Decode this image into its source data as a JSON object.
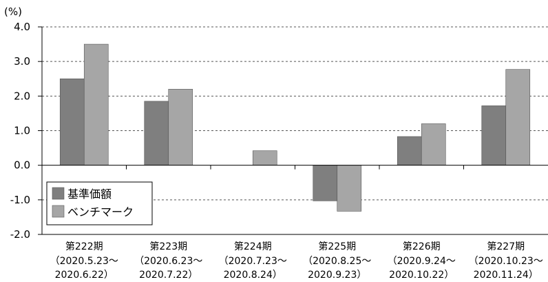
{
  "chart_data": {
    "type": "bar",
    "unit_label": "(%)",
    "ylim": [
      -2.0,
      4.0
    ],
    "yticks": [
      "4.0",
      "3.0",
      "2.0",
      "1.0",
      "0.0",
      "-1.0",
      "-2.0"
    ],
    "ytick_values": [
      4.0,
      3.0,
      2.0,
      1.0,
      0.0,
      -1.0,
      -2.0
    ],
    "grid": "dashed horizontal",
    "legend_position": "bottom-left",
    "categories": [
      {
        "line1": "第222期",
        "line2": "（2020.5.23〜",
        "line3": "2020.6.22）"
      },
      {
        "line1": "第223期",
        "line2": "（2020.6.23〜",
        "line3": "2020.7.22）"
      },
      {
        "line1": "第224期",
        "line2": "（2020.7.23〜",
        "line3": "2020.8.24）"
      },
      {
        "line1": "第225期",
        "line2": "（2020.8.25〜",
        "line3": "2020.9.23）"
      },
      {
        "line1": "第226期",
        "line2": "（2020.9.24〜",
        "line3": "2020.10.22）"
      },
      {
        "line1": "第227期",
        "line2": "（2020.10.23〜",
        "line3": "2020.11.24）"
      }
    ],
    "series": [
      {
        "name": "基準価額",
        "color": "#7f7f7f",
        "values": [
          2.5,
          1.85,
          0.0,
          -1.03,
          0.83,
          1.72
        ]
      },
      {
        "name": "ベンチマーク",
        "color": "#a6a6a6",
        "values": [
          3.5,
          2.2,
          0.42,
          -1.33,
          1.2,
          2.77
        ]
      }
    ]
  }
}
